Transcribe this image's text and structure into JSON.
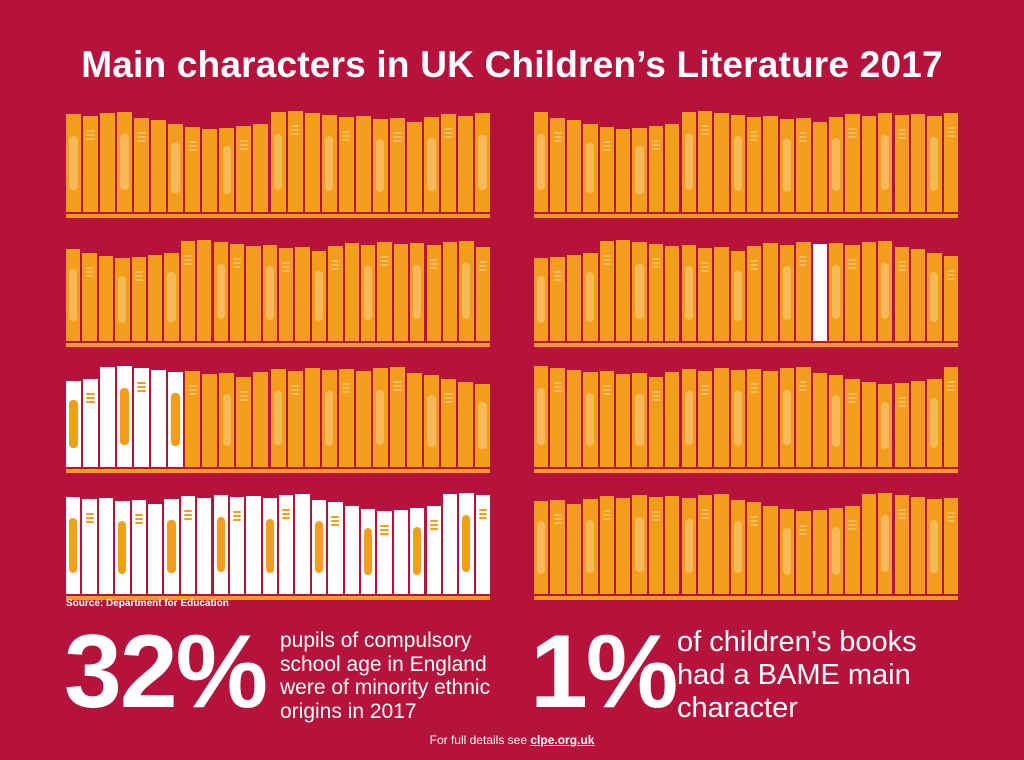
{
  "title": "Main characters in UK Children’s Literature 2017",
  "source": "Source: Department for Education",
  "colors": {
    "background": "#b5123c",
    "orange_book": "#f29e1c",
    "orange_band": "#f7b85a",
    "white_book": "#ffffff",
    "white_band": "#f29e1c"
  },
  "shelves": {
    "left": [
      {
        "books": 25,
        "white_books": 0
      },
      {
        "books": 26,
        "white_books": 0
      },
      {
        "books": 25,
        "white_books": 7
      },
      {
        "books": 26,
        "white_books": 26
      }
    ],
    "right": [
      {
        "books": 26,
        "white_books": 0
      },
      {
        "books": 26,
        "white_books": 1,
        "white_position": 17
      },
      {
        "books": 26,
        "white_books": 0
      },
      {
        "books": 26,
        "white_books": 0
      }
    ]
  },
  "stats": {
    "pupils": {
      "value": "32%",
      "lines": [
        "pupils of compulsory",
        "school age in England",
        "were of minority ethnic",
        "origins in 2017"
      ]
    },
    "books": {
      "value": "1%",
      "lines": [
        "of children’s books",
        "had a BAME main",
        "character"
      ]
    }
  },
  "footer": {
    "prefix": "For full details see",
    "link": "clpe.org.uk"
  }
}
